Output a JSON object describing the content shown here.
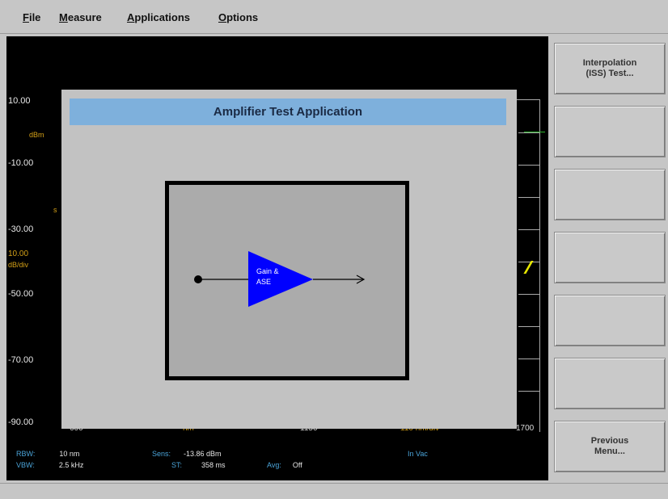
{
  "menu": {
    "file": {
      "first": "F",
      "rest": "ile"
    },
    "measure": {
      "first": "M",
      "rest": "easure"
    },
    "applications": {
      "first": "A",
      "rest": "pplications"
    },
    "options": {
      "first": "O",
      "rest": "ptions"
    }
  },
  "plot": {
    "y_ticks": [
      "10.00",
      "-10.00",
      "-30.00",
      "-50.00",
      "-70.00",
      "-90.00"
    ],
    "y_unit": "dBm",
    "scale_value": "10.00",
    "scale_unit": "dB/div",
    "x_labels": [
      "600",
      "nm",
      "1150",
      "110 nm/div",
      "1700"
    ],
    "stray_mark": "s"
  },
  "status": {
    "rbw_key": "RBW:",
    "rbw_val": "10 nm",
    "vbw_key": "VBW:",
    "vbw_val": "2.5 kHz",
    "sens_key": "Sens:",
    "sens_val": "-13.86 dBm",
    "st_key": "ST:",
    "st_val": "358 ms",
    "avg_key": "Avg:",
    "avg_val": "Off",
    "medium": "In Vac"
  },
  "dialog": {
    "title": "Amplifier Test Application",
    "amp_label_line1": "Gain &",
    "amp_label_line2": "ASE"
  },
  "softkeys": [
    "Interpolation\n(ISS) Test...",
    "",
    "",
    "",
    "",
    "",
    "Previous\nMenu..."
  ],
  "colors": {
    "dialog_title_bg": "#7eb0dc",
    "amplifier_fill": "#0000ff",
    "trace_green": "#2fb52f",
    "trace_yellow": "#e6e600"
  }
}
